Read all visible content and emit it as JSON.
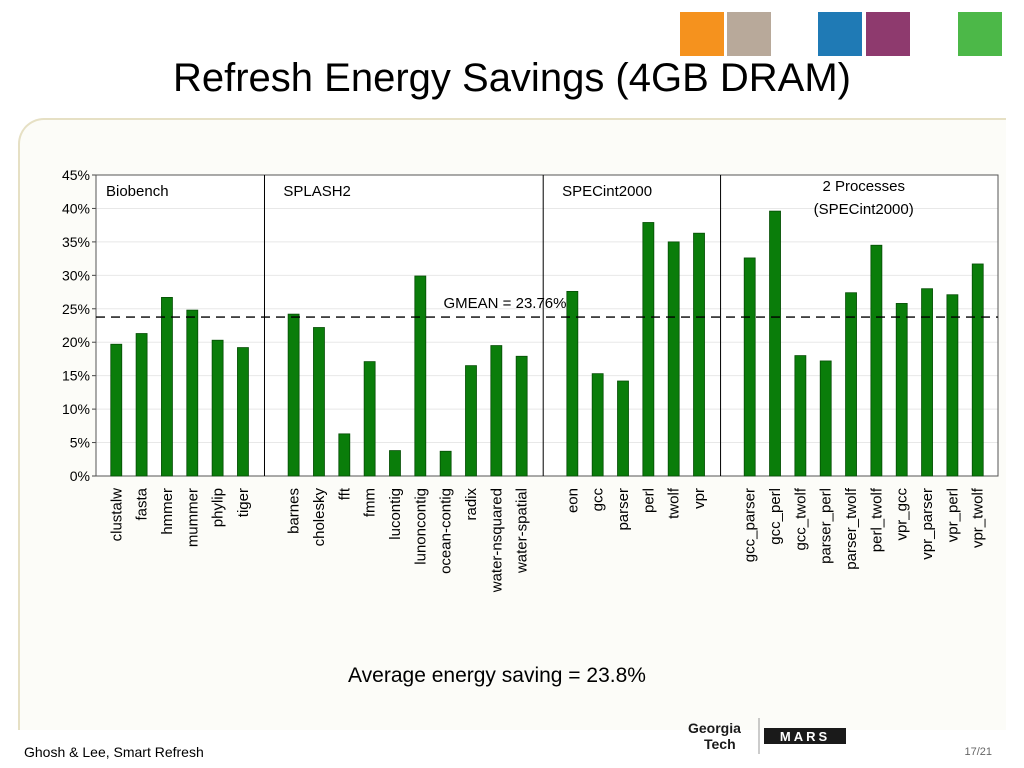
{
  "slide": {
    "title": "Refresh Energy Savings (4GB DRAM)",
    "average_note": "Average energy saving = 23.8%",
    "footer_left": "Ghosh & Lee, Smart Refresh",
    "page_number": "17/21",
    "logo": {
      "line1": "Georgia",
      "line2": "Tech",
      "mark": "MARS"
    }
  },
  "colors": {
    "bar": "#0a7d0a",
    "bar_outline": "#054d05",
    "deco": [
      "#f5921e",
      "#1f7ab5",
      "#4cb848"
    ]
  },
  "chart_data": {
    "type": "bar",
    "ylim": [
      0,
      45
    ],
    "yticks": [
      "0%",
      "5%",
      "10%",
      "15%",
      "20%",
      "25%",
      "30%",
      "35%",
      "40%",
      "45%"
    ],
    "gmean": {
      "value": 23.76,
      "label": "GMEAN = 23.76%"
    },
    "groups": [
      {
        "label": "Biobench",
        "label2": "",
        "categories": [
          "clustalw",
          "fasta",
          "hmmer",
          "mummer",
          "phylip",
          "tiger"
        ],
        "values": [
          19.7,
          21.3,
          26.7,
          24.8,
          20.3,
          19.2
        ]
      },
      {
        "label": "SPLASH2",
        "label2": "",
        "categories": [
          "barnes",
          "cholesky",
          "fft",
          "fmm",
          "lucontig",
          "lunoncontig",
          "ocean-contig",
          "radix",
          "water-nsquared",
          "water-spatial"
        ],
        "values": [
          24.2,
          22.2,
          6.3,
          17.1,
          3.8,
          29.9,
          3.7,
          16.5,
          19.5,
          17.9
        ]
      },
      {
        "label": "SPECint2000",
        "label2": "",
        "categories": [
          "eon",
          "gcc",
          "parser",
          "perl",
          "twolf",
          "vpr"
        ],
        "values": [
          27.6,
          15.3,
          14.2,
          37.9,
          35.0,
          36.3
        ]
      },
      {
        "label": "2 Processes",
        "label2": "(SPECint2000)",
        "categories": [
          "gcc_parser",
          "gcc_perl",
          "gcc_twolf",
          "parser_perl",
          "parser_twolf",
          "perl_twolf",
          "vpr_gcc",
          "vpr_parser",
          "vpr_perl",
          "vpr_twolf"
        ],
        "values": [
          32.6,
          39.6,
          18.0,
          17.2,
          27.4,
          34.5,
          25.8,
          28.0,
          27.1,
          31.7
        ]
      }
    ]
  }
}
